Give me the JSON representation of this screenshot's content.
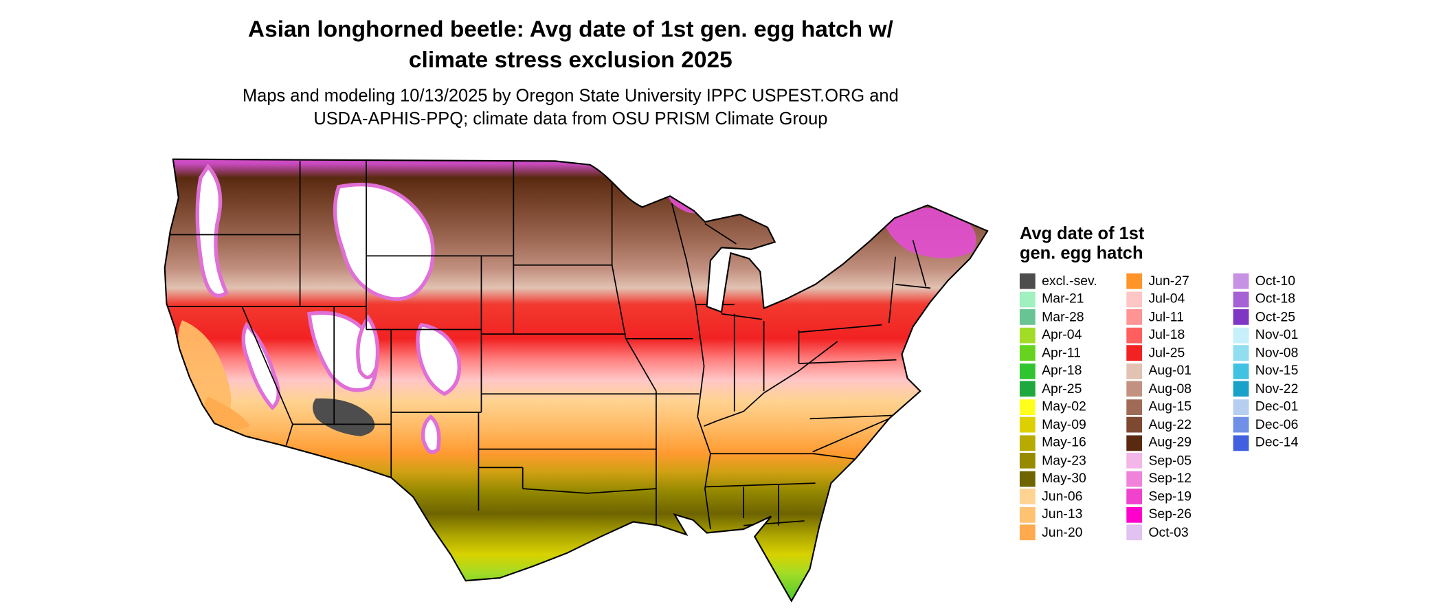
{
  "title": {
    "line1": "Asian longhorned beetle: Avg date of 1st gen. egg hatch w/",
    "line2": "climate stress exclusion 2025"
  },
  "subtitle": {
    "line1": "Maps and modeling 10/13/2025 by Oregon State University IPPC USPEST.ORG and",
    "line2": "USDA-APHIS-PPQ; climate data from OSU PRISM Climate Group"
  },
  "legend": {
    "title_line1": "Avg date of 1st",
    "title_line2": "gen. egg hatch",
    "columns": [
      [
        {
          "label": "excl.-sev.",
          "color": "#4d4d4d"
        },
        {
          "label": "Mar-21",
          "color": "#a0f0c0"
        },
        {
          "label": "Mar-28",
          "color": "#68c493"
        },
        {
          "label": "Apr-04",
          "color": "#a2dc26"
        },
        {
          "label": "Apr-11",
          "color": "#66d41e"
        },
        {
          "label": "Apr-18",
          "color": "#30c430"
        },
        {
          "label": "Apr-25",
          "color": "#1fa83e"
        },
        {
          "label": "May-02",
          "color": "#ffff1e"
        },
        {
          "label": "May-09",
          "color": "#ddd000"
        },
        {
          "label": "May-16",
          "color": "#b8ab00"
        },
        {
          "label": "May-23",
          "color": "#968a00"
        },
        {
          "label": "May-30",
          "color": "#6e6400"
        },
        {
          "label": "Jun-06",
          "color": "#ffd392"
        },
        {
          "label": "Jun-13",
          "color": "#ffc172"
        },
        {
          "label": "Jun-20",
          "color": "#ffaa4e"
        }
      ],
      [
        {
          "label": "Jun-27",
          "color": "#ff9428"
        },
        {
          "label": "Jul-04",
          "color": "#ffc6c6"
        },
        {
          "label": "Jul-11",
          "color": "#ff9494"
        },
        {
          "label": "Jul-18",
          "color": "#ff5f5f"
        },
        {
          "label": "Jul-25",
          "color": "#f22222"
        },
        {
          "label": "Aug-01",
          "color": "#e2c2b2"
        },
        {
          "label": "Aug-08",
          "color": "#c39181"
        },
        {
          "label": "Aug-15",
          "color": "#a06b56"
        },
        {
          "label": "Aug-22",
          "color": "#7d4931"
        },
        {
          "label": "Aug-29",
          "color": "#5a2a10"
        },
        {
          "label": "Sep-05",
          "color": "#f2b6e8"
        },
        {
          "label": "Sep-12",
          "color": "#f082da"
        },
        {
          "label": "Sep-19",
          "color": "#f042cc"
        },
        {
          "label": "Sep-26",
          "color": "#ff00cc"
        },
        {
          "label": "Oct-03",
          "color": "#e2c2f0"
        }
      ],
      [
        {
          "label": "Oct-10",
          "color": "#c892e4"
        },
        {
          "label": "Oct-18",
          "color": "#a661d4"
        },
        {
          "label": "Oct-25",
          "color": "#8036c4"
        },
        {
          "label": "Nov-01",
          "color": "#c6f0fa"
        },
        {
          "label": "Nov-08",
          "color": "#90def0"
        },
        {
          "label": "Nov-15",
          "color": "#42c2e2"
        },
        {
          "label": "Nov-22",
          "color": "#18a2ca"
        },
        {
          "label": "Dec-01",
          "color": "#b6cef0"
        },
        {
          "label": "Dec-06",
          "color": "#7090e8"
        },
        {
          "label": "Dec-14",
          "color": "#4060e0"
        }
      ]
    ]
  }
}
